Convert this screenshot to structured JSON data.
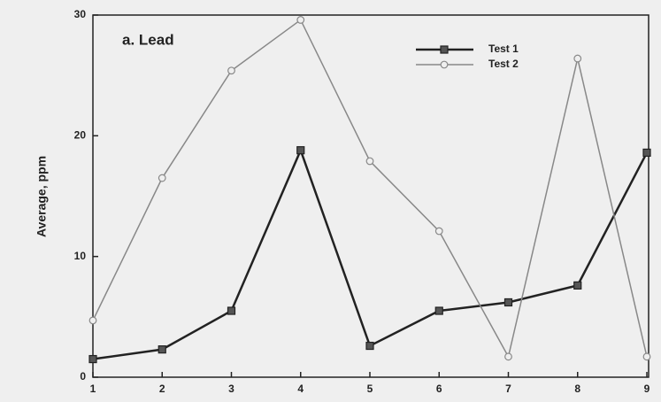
{
  "chart_data": {
    "type": "line",
    "annotation": "a. Lead",
    "y_label": "Average, ppm",
    "x": [
      1,
      2,
      3,
      4,
      5,
      6,
      7,
      8,
      9
    ],
    "series": [
      {
        "name": "Test 1",
        "color": "#222222",
        "marker": "square",
        "values": [
          1.5,
          2.3,
          5.5,
          18.8,
          2.6,
          5.5,
          6.2,
          7.6,
          18.6
        ]
      },
      {
        "name": "Test 2",
        "color": "#888888",
        "marker": "circle",
        "values": [
          4.7,
          16.5,
          25.4,
          29.6,
          17.9,
          12.1,
          1.7,
          26.4,
          1.7
        ]
      }
    ],
    "xlim": [
      1,
      9
    ],
    "xticks": [
      1,
      2,
      3,
      4,
      5,
      6,
      7,
      8,
      9
    ],
    "ylim": [
      0,
      30
    ],
    "yticks": [
      0,
      10,
      20,
      30
    ],
    "legend": "upper right"
  }
}
